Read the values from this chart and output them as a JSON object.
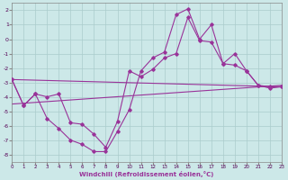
{
  "xlabel": "Windchill (Refroidissement éolien,°C)",
  "xlim": [
    0,
    23
  ],
  "ylim": [
    -8.5,
    2.5
  ],
  "yticks": [
    2,
    1,
    0,
    -1,
    -2,
    -3,
    -4,
    -5,
    -6,
    -7,
    -8
  ],
  "xticks": [
    0,
    1,
    2,
    3,
    4,
    5,
    6,
    7,
    8,
    9,
    10,
    11,
    12,
    13,
    14,
    15,
    16,
    17,
    18,
    19,
    20,
    21,
    22,
    23
  ],
  "bg_color": "#cce8e8",
  "grid_color": "#aacccc",
  "line_color": "#993399",
  "line1_x": [
    0,
    1,
    2,
    3,
    4,
    5,
    6,
    7,
    8,
    9,
    10,
    11,
    12,
    13,
    14,
    15,
    16,
    17,
    18,
    19,
    20,
    21,
    22,
    23
  ],
  "line1_y": [
    -2.8,
    -4.6,
    -3.8,
    -5.5,
    -6.2,
    -7.0,
    -7.3,
    -7.8,
    -7.8,
    -6.4,
    -4.9,
    -2.2,
    -1.3,
    -0.9,
    1.7,
    2.1,
    0.0,
    1.0,
    -1.7,
    -1.8,
    -2.2,
    -3.2,
    -3.3,
    -3.3
  ],
  "line2_x": [
    0,
    1,
    2,
    3,
    4,
    5,
    6,
    7,
    8,
    9,
    10,
    11,
    12,
    13,
    14,
    15,
    16,
    17,
    18,
    19,
    20,
    21,
    22,
    23
  ],
  "line2_y": [
    -2.8,
    -4.6,
    -3.8,
    -4.0,
    -3.8,
    -5.8,
    -5.9,
    -6.6,
    -7.5,
    -5.7,
    -2.2,
    -2.6,
    -2.1,
    -1.3,
    -1.0,
    1.5,
    -0.1,
    -0.2,
    -1.7,
    -1.0,
    -2.2,
    -3.2,
    -3.4,
    -3.3
  ],
  "line3_x": [
    0,
    23
  ],
  "line3_y": [
    -2.8,
    -3.3
  ],
  "line4_x": [
    0,
    23
  ],
  "line4_y": [
    -4.5,
    -3.2
  ]
}
